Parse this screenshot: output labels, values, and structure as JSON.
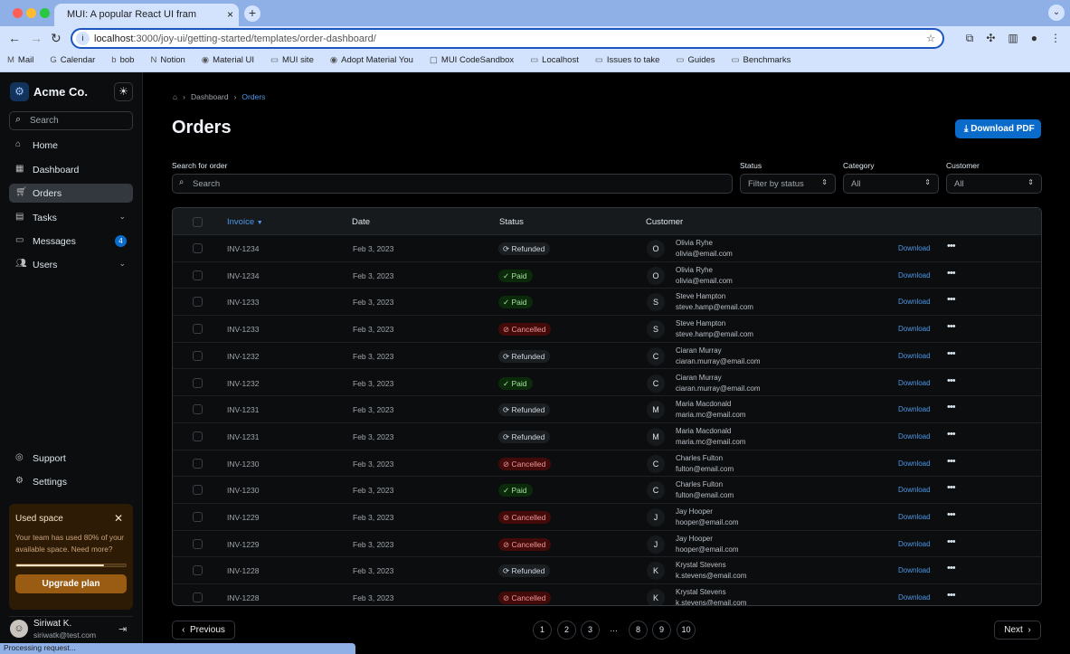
{
  "browser": {
    "tab_title": "MUI: A popular React UI fram",
    "url_host": "localhost",
    "url_path": ":3000/joy-ui/getting-started/templates/order-dashboard/",
    "status": "Processing request...",
    "bookmarks": [
      "Mail",
      "Calendar",
      "bob",
      "Notion",
      "Material UI",
      "MUI site",
      "Adopt Material You",
      "MUI CodeSandbox",
      "Localhost",
      "Issues to take",
      "Guides",
      "Benchmarks"
    ]
  },
  "sidebar": {
    "brand": "Acme Co.",
    "search_placeholder": "Search",
    "items": [
      {
        "label": "Home",
        "icon": "home-icon"
      },
      {
        "label": "Dashboard",
        "icon": "dashboard-icon"
      },
      {
        "label": "Orders",
        "icon": "cart-icon",
        "active": true
      },
      {
        "label": "Tasks",
        "icon": "clipboard-icon"
      },
      {
        "label": "Messages",
        "icon": "chat-icon",
        "badge": "4"
      },
      {
        "label": "Users",
        "icon": "users-icon"
      }
    ],
    "bottom": [
      {
        "label": "Support"
      },
      {
        "label": "Settings"
      }
    ],
    "card": {
      "title": "Used space",
      "text": "Your team has used 80% of your available space. Need more?",
      "progress": 80,
      "button": "Upgrade plan"
    },
    "user": {
      "name": "Siriwat K.",
      "email": "siriwatk@test.com"
    }
  },
  "main": {
    "breadcrumb": [
      "Dashboard",
      "Orders"
    ],
    "title": "Orders",
    "download_pdf": "Download PDF",
    "filters": {
      "search_label": "Search for order",
      "search_placeholder": "Search",
      "status_label": "Status",
      "status_placeholder": "Filter by status",
      "category_label": "Category",
      "category_value": "All",
      "customer_label": "Customer",
      "customer_value": "All"
    },
    "columns": [
      "Invoice",
      "Date",
      "Status",
      "Customer"
    ],
    "download_label": "Download",
    "rows": [
      [
        "INV-1234",
        "Feb 3, 2023",
        "Refunded",
        "O",
        "Olivia Ryhe",
        "olivia@email.com"
      ],
      [
        "INV-1234",
        "Feb 3, 2023",
        "Paid",
        "O",
        "Olivia Ryhe",
        "olivia@email.com"
      ],
      [
        "INV-1233",
        "Feb 3, 2023",
        "Paid",
        "S",
        "Steve Hampton",
        "steve.hamp@email.com"
      ],
      [
        "INV-1233",
        "Feb 3, 2023",
        "Cancelled",
        "S",
        "Steve Hampton",
        "steve.hamp@email.com"
      ],
      [
        "INV-1232",
        "Feb 3, 2023",
        "Refunded",
        "C",
        "Ciaran Murray",
        "ciaran.murray@email.com"
      ],
      [
        "INV-1232",
        "Feb 3, 2023",
        "Paid",
        "C",
        "Ciaran Murray",
        "ciaran.murray@email.com"
      ],
      [
        "INV-1231",
        "Feb 3, 2023",
        "Refunded",
        "M",
        "Maria Macdonald",
        "maria.mc@email.com"
      ],
      [
        "INV-1231",
        "Feb 3, 2023",
        "Refunded",
        "M",
        "Maria Macdonald",
        "maria.mc@email.com"
      ],
      [
        "INV-1230",
        "Feb 3, 2023",
        "Cancelled",
        "C",
        "Charles Fulton",
        "fulton@email.com"
      ],
      [
        "INV-1230",
        "Feb 3, 2023",
        "Paid",
        "C",
        "Charles Fulton",
        "fulton@email.com"
      ],
      [
        "INV-1229",
        "Feb 3, 2023",
        "Cancelled",
        "J",
        "Jay Hooper",
        "hooper@email.com"
      ],
      [
        "INV-1229",
        "Feb 3, 2023",
        "Cancelled",
        "J",
        "Jay Hooper",
        "hooper@email.com"
      ],
      [
        "INV-1228",
        "Feb 3, 2023",
        "Refunded",
        "K",
        "Krystal Stevens",
        "k.stevens@email.com"
      ],
      [
        "INV-1228",
        "Feb 3, 2023",
        "Cancelled",
        "K",
        "Krystal Stevens",
        "k.stevens@email.com"
      ]
    ],
    "pagination": {
      "previous": "Previous",
      "next": "Next",
      "pages": [
        "1",
        "2",
        "3",
        "…",
        "8",
        "9",
        "10"
      ]
    }
  }
}
